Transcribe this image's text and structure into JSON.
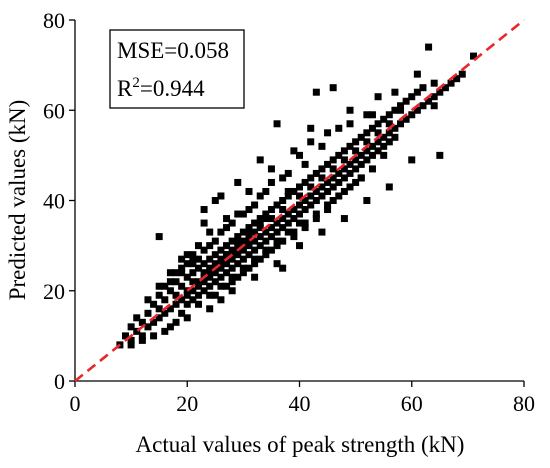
{
  "chart_data": {
    "type": "scatter",
    "xlabel": "Actual values of peak strength (kN)",
    "ylabel": "Predicted values (kN)",
    "xlim": [
      0,
      80
    ],
    "ylim": [
      0,
      80
    ],
    "xticks": [
      "0",
      "20",
      "40",
      "60",
      "80"
    ],
    "yticks": [
      "0",
      "20",
      "40",
      "60",
      "80"
    ],
    "grid": false,
    "annotation": {
      "mse_text": "MSE=0.058",
      "r2_prefix": "R",
      "r2_superscript": "2",
      "r2_suffix": "=0.944"
    },
    "reference_line": {
      "style": "dashed",
      "color": "#e8262b",
      "from": [
        0,
        0
      ],
      "to": [
        80,
        80
      ]
    },
    "marker_color": "#000000",
    "series": [
      {
        "marker": "square",
        "points": [
          [
            8,
            8
          ],
          [
            9,
            10
          ],
          [
            10,
            9
          ],
          [
            10,
            12
          ],
          [
            11,
            11
          ],
          [
            11,
            14
          ],
          [
            12,
            10
          ],
          [
            12,
            13
          ],
          [
            13,
            12
          ],
          [
            13,
            15
          ],
          [
            14,
            13
          ],
          [
            14,
            17
          ],
          [
            15,
            14
          ],
          [
            15,
            16
          ],
          [
            15,
            32
          ],
          [
            16,
            15
          ],
          [
            16,
            18
          ],
          [
            17,
            16
          ],
          [
            17,
            20
          ],
          [
            17,
            12
          ],
          [
            18,
            17
          ],
          [
            18,
            19
          ],
          [
            18,
            22
          ],
          [
            19,
            18
          ],
          [
            19,
            21
          ],
          [
            19,
            15
          ],
          [
            20,
            19
          ],
          [
            20,
            23
          ],
          [
            20,
            17
          ],
          [
            20,
            26
          ],
          [
            21,
            20
          ],
          [
            21,
            24
          ],
          [
            21,
            18
          ],
          [
            21,
            28
          ],
          [
            22,
            21
          ],
          [
            22,
            25
          ],
          [
            22,
            19
          ],
          [
            22,
            30
          ],
          [
            23,
            22
          ],
          [
            23,
            26
          ],
          [
            23,
            20
          ],
          [
            23,
            35
          ],
          [
            24,
            23
          ],
          [
            24,
            27
          ],
          [
            24,
            21
          ],
          [
            24,
            33
          ],
          [
            25,
            24
          ],
          [
            25,
            28
          ],
          [
            25,
            22
          ],
          [
            25,
            40
          ],
          [
            26,
            25
          ],
          [
            26,
            29
          ],
          [
            26,
            23
          ],
          [
            26,
            18
          ],
          [
            27,
            26
          ],
          [
            27,
            30
          ],
          [
            27,
            24
          ],
          [
            27,
            34
          ],
          [
            28,
            27
          ],
          [
            28,
            31
          ],
          [
            28,
            25
          ],
          [
            28,
            22
          ],
          [
            29,
            28
          ],
          [
            29,
            32
          ],
          [
            29,
            26
          ],
          [
            29,
            37
          ],
          [
            30,
            29
          ],
          [
            30,
            33
          ],
          [
            30,
            27
          ],
          [
            30,
            24
          ],
          [
            31,
            30
          ],
          [
            31,
            34
          ],
          [
            31,
            28
          ],
          [
            31,
            38
          ],
          [
            32,
            31
          ],
          [
            32,
            35
          ],
          [
            32,
            29
          ],
          [
            32,
            26
          ],
          [
            33,
            32
          ],
          [
            33,
            36
          ],
          [
            33,
            30
          ],
          [
            33,
            41
          ],
          [
            34,
            33
          ],
          [
            34,
            37
          ],
          [
            34,
            31
          ],
          [
            34,
            28
          ],
          [
            35,
            34
          ],
          [
            35,
            38
          ],
          [
            35,
            32
          ],
          [
            35,
            44
          ],
          [
            36,
            35
          ],
          [
            36,
            39
          ],
          [
            36,
            33
          ],
          [
            36,
            30
          ],
          [
            37,
            36
          ],
          [
            37,
            40
          ],
          [
            37,
            34
          ],
          [
            37,
            25
          ],
          [
            38,
            37
          ],
          [
            38,
            41
          ],
          [
            38,
            35
          ],
          [
            38,
            46
          ],
          [
            39,
            38
          ],
          [
            39,
            42
          ],
          [
            39,
            36
          ],
          [
            39,
            32
          ],
          [
            40,
            39
          ],
          [
            40,
            43
          ],
          [
            40,
            37
          ],
          [
            40,
            50
          ],
          [
            41,
            40
          ],
          [
            41,
            44
          ],
          [
            41,
            38
          ],
          [
            41,
            35
          ],
          [
            42,
            41
          ],
          [
            42,
            45
          ],
          [
            42,
            39
          ],
          [
            42,
            56
          ],
          [
            43,
            42
          ],
          [
            43,
            46
          ],
          [
            43,
            40
          ],
          [
            43,
            36
          ],
          [
            44,
            43
          ],
          [
            44,
            47
          ],
          [
            44,
            41
          ],
          [
            44,
            52
          ],
          [
            45,
            44
          ],
          [
            45,
            48
          ],
          [
            45,
            42
          ],
          [
            45,
            38
          ],
          [
            46,
            45
          ],
          [
            46,
            49
          ],
          [
            46,
            43
          ],
          [
            46,
            40
          ],
          [
            47,
            46
          ],
          [
            47,
            50
          ],
          [
            47,
            44
          ],
          [
            47,
            56
          ],
          [
            48,
            47
          ],
          [
            48,
            51
          ],
          [
            48,
            45
          ],
          [
            48,
            42
          ],
          [
            49,
            48
          ],
          [
            49,
            52
          ],
          [
            49,
            46
          ],
          [
            49,
            60
          ],
          [
            50,
            49
          ],
          [
            50,
            53
          ],
          [
            50,
            47
          ],
          [
            50,
            44
          ],
          [
            51,
            50
          ],
          [
            51,
            54
          ],
          [
            51,
            48
          ],
          [
            51,
            45
          ],
          [
            52,
            51
          ],
          [
            52,
            55
          ],
          [
            52,
            49
          ],
          [
            52,
            59
          ],
          [
            53,
            52
          ],
          [
            53,
            56
          ],
          [
            53,
            50
          ],
          [
            53,
            47
          ],
          [
            54,
            53
          ],
          [
            54,
            57
          ],
          [
            54,
            51
          ],
          [
            54,
            63
          ],
          [
            55,
            54
          ],
          [
            55,
            58
          ],
          [
            55,
            52
          ],
          [
            55,
            50
          ],
          [
            56,
            55
          ],
          [
            56,
            59
          ],
          [
            56,
            53
          ],
          [
            57,
            56
          ],
          [
            57,
            60
          ],
          [
            57,
            54
          ],
          [
            58,
            57
          ],
          [
            58,
            61
          ],
          [
            58,
            60
          ],
          [
            59,
            58
          ],
          [
            59,
            62
          ],
          [
            60,
            59
          ],
          [
            60,
            63
          ],
          [
            61,
            60
          ],
          [
            61,
            64
          ],
          [
            62,
            61
          ],
          [
            62,
            65
          ],
          [
            63,
            62
          ],
          [
            63,
            74
          ],
          [
            64,
            63
          ],
          [
            64,
            61
          ],
          [
            64,
            66
          ],
          [
            65,
            64
          ],
          [
            65,
            50
          ],
          [
            66,
            65
          ],
          [
            67,
            66
          ],
          [
            68,
            67
          ],
          [
            69,
            68
          ],
          [
            71,
            72
          ],
          [
            46,
            65
          ],
          [
            43,
            64
          ],
          [
            36,
            57
          ],
          [
            33,
            49
          ],
          [
            29,
            44
          ],
          [
            26,
            41
          ],
          [
            23,
            38
          ],
          [
            48,
            36
          ],
          [
            52,
            40
          ],
          [
            56,
            43
          ],
          [
            60,
            49
          ],
          [
            40,
            30
          ],
          [
            44,
            33
          ],
          [
            36,
            26
          ],
          [
            32,
            23
          ],
          [
            28,
            20
          ],
          [
            24,
            16
          ],
          [
            20,
            14
          ],
          [
            18,
            13
          ],
          [
            16,
            11
          ],
          [
            14,
            10
          ],
          [
            12,
            9
          ],
          [
            10,
            8
          ],
          [
            27,
            36
          ],
          [
            31,
            42
          ],
          [
            35,
            47
          ],
          [
            39,
            51
          ],
          [
            42,
            53
          ],
          [
            45,
            55
          ],
          [
            49,
            57
          ],
          [
            53,
            59
          ],
          [
            57,
            64
          ],
          [
            61,
            68
          ],
          [
            24,
            30
          ],
          [
            26,
            33
          ],
          [
            28,
            35
          ],
          [
            30,
            37
          ],
          [
            32,
            39
          ],
          [
            34,
            42
          ],
          [
            37,
            45
          ],
          [
            41,
            48
          ],
          [
            19,
            25
          ],
          [
            21,
            27
          ],
          [
            23,
            29
          ],
          [
            25,
            31
          ],
          [
            27,
            28
          ],
          [
            29,
            30
          ],
          [
            31,
            32
          ],
          [
            33,
            34
          ],
          [
            35,
            36
          ],
          [
            37,
            38
          ],
          [
            22,
            17
          ],
          [
            24,
            19
          ],
          [
            26,
            21
          ],
          [
            28,
            23
          ],
          [
            30,
            25
          ],
          [
            32,
            27
          ],
          [
            34,
            29
          ],
          [
            36,
            31
          ],
          [
            38,
            33
          ],
          [
            40,
            35
          ],
          [
            15,
            19
          ],
          [
            17,
            22
          ],
          [
            19,
            24
          ],
          [
            21,
            26
          ],
          [
            23,
            24
          ],
          [
            25,
            26
          ],
          [
            27,
            28
          ],
          [
            29,
            31
          ],
          [
            31,
            33
          ],
          [
            33,
            35
          ],
          [
            16,
            21
          ],
          [
            18,
            24
          ],
          [
            20,
            28
          ],
          [
            22,
            27
          ],
          [
            24,
            25
          ],
          [
            26,
            27
          ],
          [
            28,
            29
          ],
          [
            30,
            31
          ],
          [
            32,
            33
          ],
          [
            34,
            36
          ],
          [
            38,
            42
          ],
          [
            40,
            41
          ],
          [
            42,
            43
          ],
          [
            44,
            45
          ],
          [
            46,
            47
          ],
          [
            48,
            49
          ],
          [
            50,
            51
          ],
          [
            52,
            53
          ],
          [
            54,
            55
          ],
          [
            56,
            57
          ],
          [
            13,
            18
          ],
          [
            15,
            21
          ],
          [
            17,
            24
          ],
          [
            19,
            27
          ],
          [
            21,
            22
          ],
          [
            23,
            23
          ],
          [
            25,
            25
          ],
          [
            27,
            27
          ],
          [
            29,
            29
          ],
          [
            31,
            31
          ],
          [
            20,
            20
          ],
          [
            22,
            22
          ],
          [
            24,
            24
          ],
          [
            26,
            26
          ],
          [
            28,
            28
          ],
          [
            30,
            30
          ],
          [
            25,
            19
          ],
          [
            27,
            21
          ],
          [
            29,
            23
          ],
          [
            31,
            25
          ],
          [
            33,
            27
          ],
          [
            35,
            29
          ],
          [
            37,
            31
          ],
          [
            39,
            33
          ],
          [
            41,
            34
          ],
          [
            43,
            37
          ],
          [
            45,
            39
          ],
          [
            47,
            41
          ],
          [
            49,
            43
          ],
          [
            51,
            45
          ]
        ]
      }
    ]
  }
}
